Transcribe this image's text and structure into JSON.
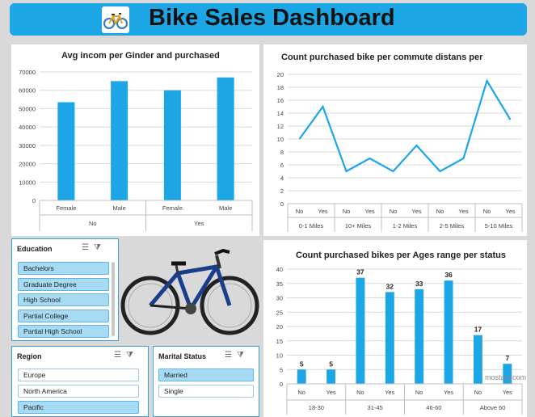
{
  "header": {
    "title": "Bike Sales Dashboard",
    "logo_icon": "bicycle-icon"
  },
  "chart_data": [
    {
      "type": "bar",
      "title": "Avg incom per Ginder and purchased",
      "categories": [
        "Female",
        "Male",
        "Female",
        "Male"
      ],
      "groups": [
        "No",
        "Yes"
      ],
      "values": [
        53500,
        65000,
        60000,
        67000
      ],
      "yticks": [
        "0",
        "10000",
        "20000",
        "30000",
        "40000",
        "50000",
        "60000",
        "70000"
      ],
      "ylim": [
        0,
        70000
      ],
      "color": "#1ca6e6"
    },
    {
      "type": "line",
      "title": "Count purchased bike per commute distans per",
      "categories": [
        "No",
        "Yes",
        "No",
        "Yes",
        "No",
        "Yes",
        "No",
        "Yes",
        "No",
        "Yes"
      ],
      "groups": [
        "0-1 Miles",
        "10+ Miles",
        "1-2 Miles",
        "2-5 Miles",
        "5-10 Miles"
      ],
      "values": [
        10,
        15,
        5,
        7,
        5,
        9,
        5,
        7,
        19,
        13
      ],
      "yticks": [
        "0",
        "2",
        "4",
        "6",
        "8",
        "10",
        "12",
        "14",
        "16",
        "18",
        "20"
      ],
      "ylim": [
        0,
        20
      ],
      "color": "#1ca6e6"
    },
    {
      "type": "bar",
      "title": "Count purchased bikes per Ages range per status",
      "categories": [
        "No",
        "Yes",
        "No",
        "Yes",
        "No",
        "Yes",
        "No",
        "Yes"
      ],
      "groups": [
        "18-30",
        "31-45",
        "46-60",
        "Above 60"
      ],
      "values": [
        5,
        5,
        37,
        32,
        33,
        36,
        17,
        7
      ],
      "labels": [
        "5",
        "5",
        "37",
        "32",
        "33",
        "36",
        "17",
        "7"
      ],
      "yticks": [
        "0",
        "5",
        "10",
        "15",
        "20",
        "25",
        "30",
        "35",
        "40"
      ],
      "ylim": [
        0,
        40
      ],
      "color": "#1ca6e6"
    }
  ],
  "slicers": {
    "education": {
      "title": "Education",
      "items": [
        "Bachelors",
        "Graduate Degree",
        "High School",
        "Partial College",
        "Partial High School"
      ]
    },
    "region": {
      "title": "Region",
      "items": [
        "Europe",
        "North America",
        "Pacific"
      ]
    },
    "marital": {
      "title": "Marital Status",
      "items": [
        "Married",
        "Single"
      ]
    }
  },
  "watermark": "mostaql.com"
}
